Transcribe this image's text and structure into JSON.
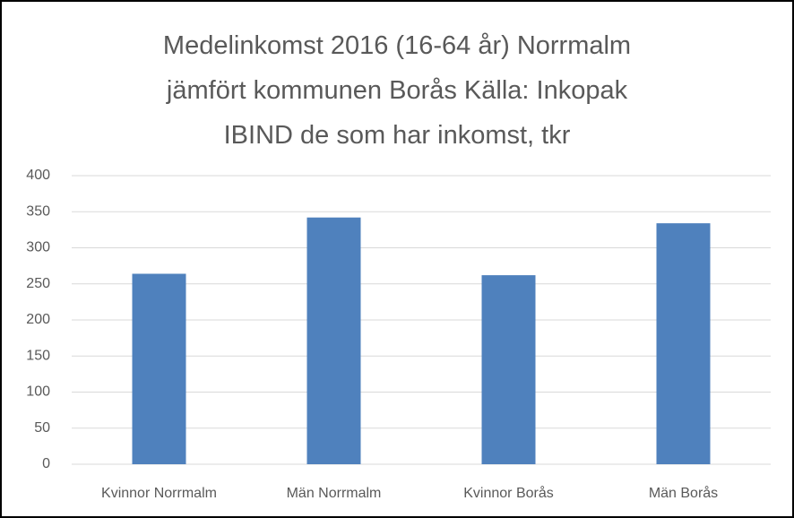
{
  "chart_data": {
    "type": "bar",
    "title": "Medelinkomst 2016 (16-64 år) Norrmalm\njämfört kommunen Borås Källa: Inkopak\nIBIND de som har inkomst, tkr",
    "categories": [
      "Kvinnor Norrmalm",
      "Män Norrmalm",
      "Kvinnor Borås",
      "Män Borås"
    ],
    "values": [
      264,
      342,
      262,
      334
    ],
    "color": "#4f81bd",
    "ylim": [
      0,
      400
    ],
    "yticks": [
      0,
      50,
      100,
      150,
      200,
      250,
      300,
      350,
      400
    ],
    "grid": true
  }
}
